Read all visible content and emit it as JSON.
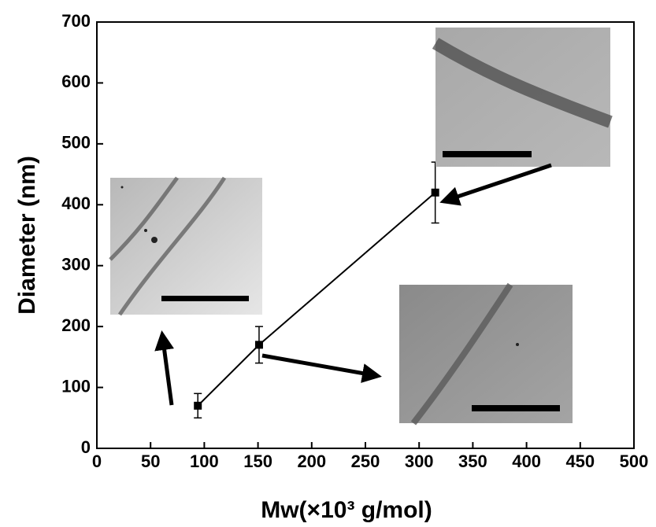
{
  "chart_data": {
    "type": "line",
    "x_label": "Mw(×10³ g/mol)",
    "y_label": "Diameter (nm)",
    "series": [
      {
        "x": [
          94,
          151,
          315
        ],
        "values": [
          70,
          170,
          420
        ],
        "errors": [
          20,
          30,
          50
        ],
        "color": "#000000"
      }
    ],
    "xlim": [
      0,
      500
    ],
    "xticks": [
      0,
      50,
      100,
      150,
      200,
      250,
      300,
      350,
      400,
      450,
      500
    ],
    "ylim": [
      0,
      700
    ],
    "yticks": [
      0,
      100,
      200,
      300,
      400,
      500,
      600,
      700
    ],
    "grid": false
  }
}
